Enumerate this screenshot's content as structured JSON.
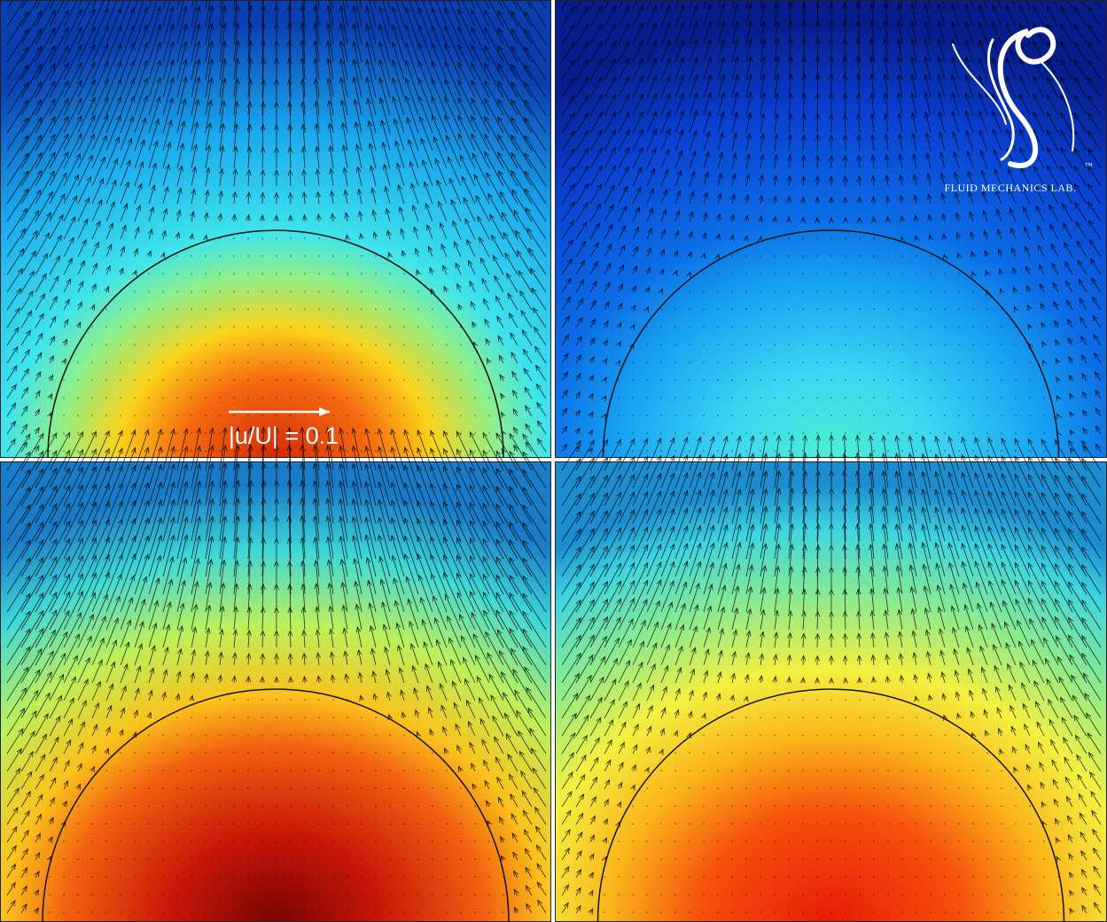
{
  "annotation": {
    "scale_label": "|u/U| = 0.1"
  },
  "logo": {
    "trademark": "™",
    "name": "FLUID MECHANICS LAB."
  }
}
